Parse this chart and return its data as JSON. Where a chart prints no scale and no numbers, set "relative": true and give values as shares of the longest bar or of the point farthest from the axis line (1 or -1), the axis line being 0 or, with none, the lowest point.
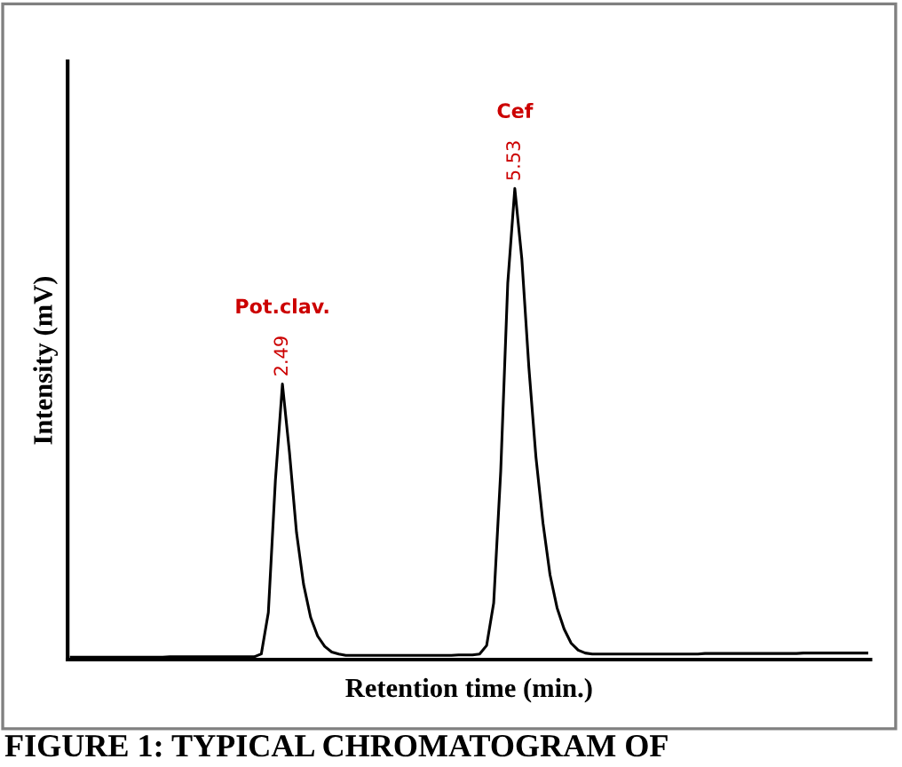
{
  "chart_data": {
    "type": "line",
    "relative": true,
    "xlabel": "Retention time (min.)",
    "ylabel": "Intensity (mV)",
    "categories": [
      null,
      null,
      null,
      null,
      null,
      null,
      null,
      null,
      null,
      null,
      null,
      null,
      null,
      null,
      null,
      null,
      null,
      null,
      null,
      null,
      null,
      null,
      null,
      null,
      null,
      null,
      null,
      null,
      null,
      null,
      null,
      null,
      null,
      null,
      null,
      null,
      null,
      null,
      null,
      null,
      null,
      null,
      null,
      null,
      null,
      null,
      null,
      null,
      null,
      null,
      null,
      null,
      null,
      null,
      null,
      null,
      null,
      null,
      null,
      null,
      null,
      null,
      null,
      null,
      null,
      null,
      null,
      null,
      null,
      null,
      null,
      null,
      null,
      null,
      null,
      null,
      null,
      null,
      null,
      null,
      null,
      null,
      null,
      null,
      null,
      null,
      null,
      null,
      null,
      null,
      null,
      null,
      null,
      null,
      null,
      null,
      null,
      null,
      null,
      null,
      null,
      null,
      null,
      null,
      null,
      null,
      null,
      null,
      null,
      null,
      null,
      null,
      null,
      null
    ],
    "series": [
      {
        "color": "#000000",
        "values": [
          0.005,
          0.005,
          0.005,
          0.005,
          0.005,
          0.005,
          0.005,
          0.005,
          0.005,
          0.005,
          0.005,
          0.005,
          0.005,
          0.005,
          0.006,
          0.006,
          0.006,
          0.006,
          0.006,
          0.006,
          0.006,
          0.006,
          0.006,
          0.006,
          0.006,
          0.006,
          0.006,
          0.012,
          0.1,
          0.38,
          0.585,
          0.44,
          0.27,
          0.16,
          0.09,
          0.05,
          0.028,
          0.016,
          0.012,
          0.009,
          0.009,
          0.009,
          0.009,
          0.009,
          0.009,
          0.009,
          0.009,
          0.009,
          0.009,
          0.009,
          0.009,
          0.009,
          0.009,
          0.009,
          0.009,
          0.01,
          0.01,
          0.01,
          0.012,
          0.03,
          0.12,
          0.4,
          0.8,
          1.0,
          0.85,
          0.62,
          0.43,
          0.29,
          0.18,
          0.11,
          0.065,
          0.035,
          0.02,
          0.014,
          0.012,
          0.012,
          0.012,
          0.012,
          0.012,
          0.012,
          0.012,
          0.012,
          0.012,
          0.012,
          0.012,
          0.012,
          0.012,
          0.012,
          0.012,
          0.012,
          0.013,
          0.013,
          0.013,
          0.013,
          0.013,
          0.013,
          0.013,
          0.013,
          0.013,
          0.013,
          0.013,
          0.013,
          0.013,
          0.013,
          0.014,
          0.014,
          0.014,
          0.014,
          0.014,
          0.014,
          0.014,
          0.014,
          0.014,
          0.014
        ]
      }
    ],
    "annotations": [
      "Pot.clav.",
      {
        "text": "2.49",
        "y": 0.585
      },
      "Cef",
      {
        "text": "5.53",
        "y": 1.0
      },
      "FIGURE 1: TYPICAL CHROMATOGRAM OF"
    ]
  }
}
